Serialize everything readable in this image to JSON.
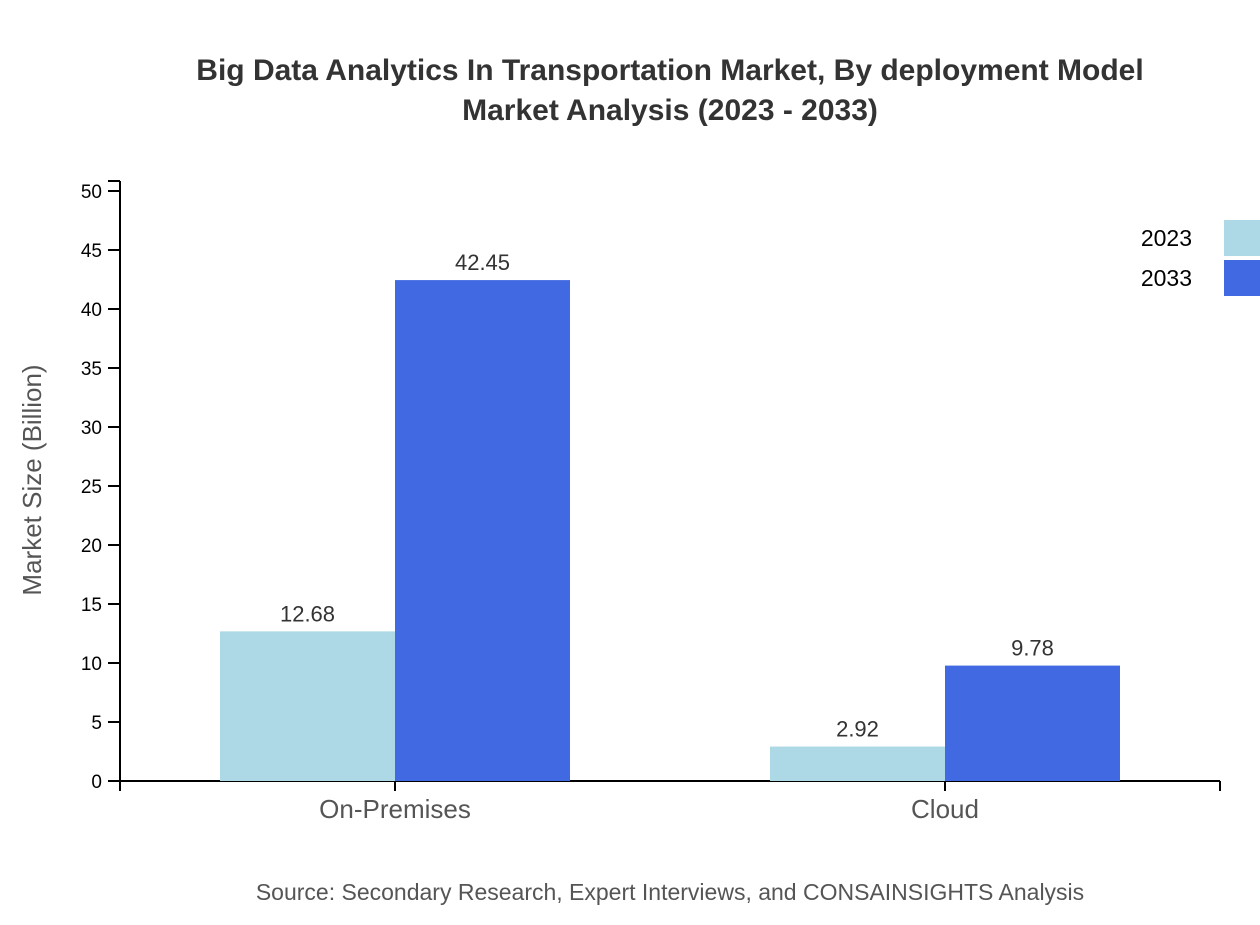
{
  "chart_data": {
    "type": "bar",
    "title": [
      "Big Data Analytics In Transportation Market, By deployment Model",
      "Market Analysis (2023 - 2033)"
    ],
    "ylabel": "Market Size (Billion)",
    "xlabel": "",
    "categories": [
      "On-Premises",
      "Cloud"
    ],
    "series": [
      {
        "name": "2023",
        "values": [
          12.68,
          2.92
        ],
        "color": "#add8e6"
      },
      {
        "name": "2033",
        "values": [
          42.45,
          9.78
        ],
        "color": "#4169e1"
      }
    ],
    "ylim": [
      0,
      50
    ],
    "yticks": [
      0,
      5,
      10,
      15,
      20,
      25,
      30,
      35,
      40,
      45,
      50
    ],
    "grid": false,
    "legend_position": "top-right",
    "source": "Source: Secondary Research, Expert Interviews, and CONSAINSIGHTS Analysis"
  }
}
